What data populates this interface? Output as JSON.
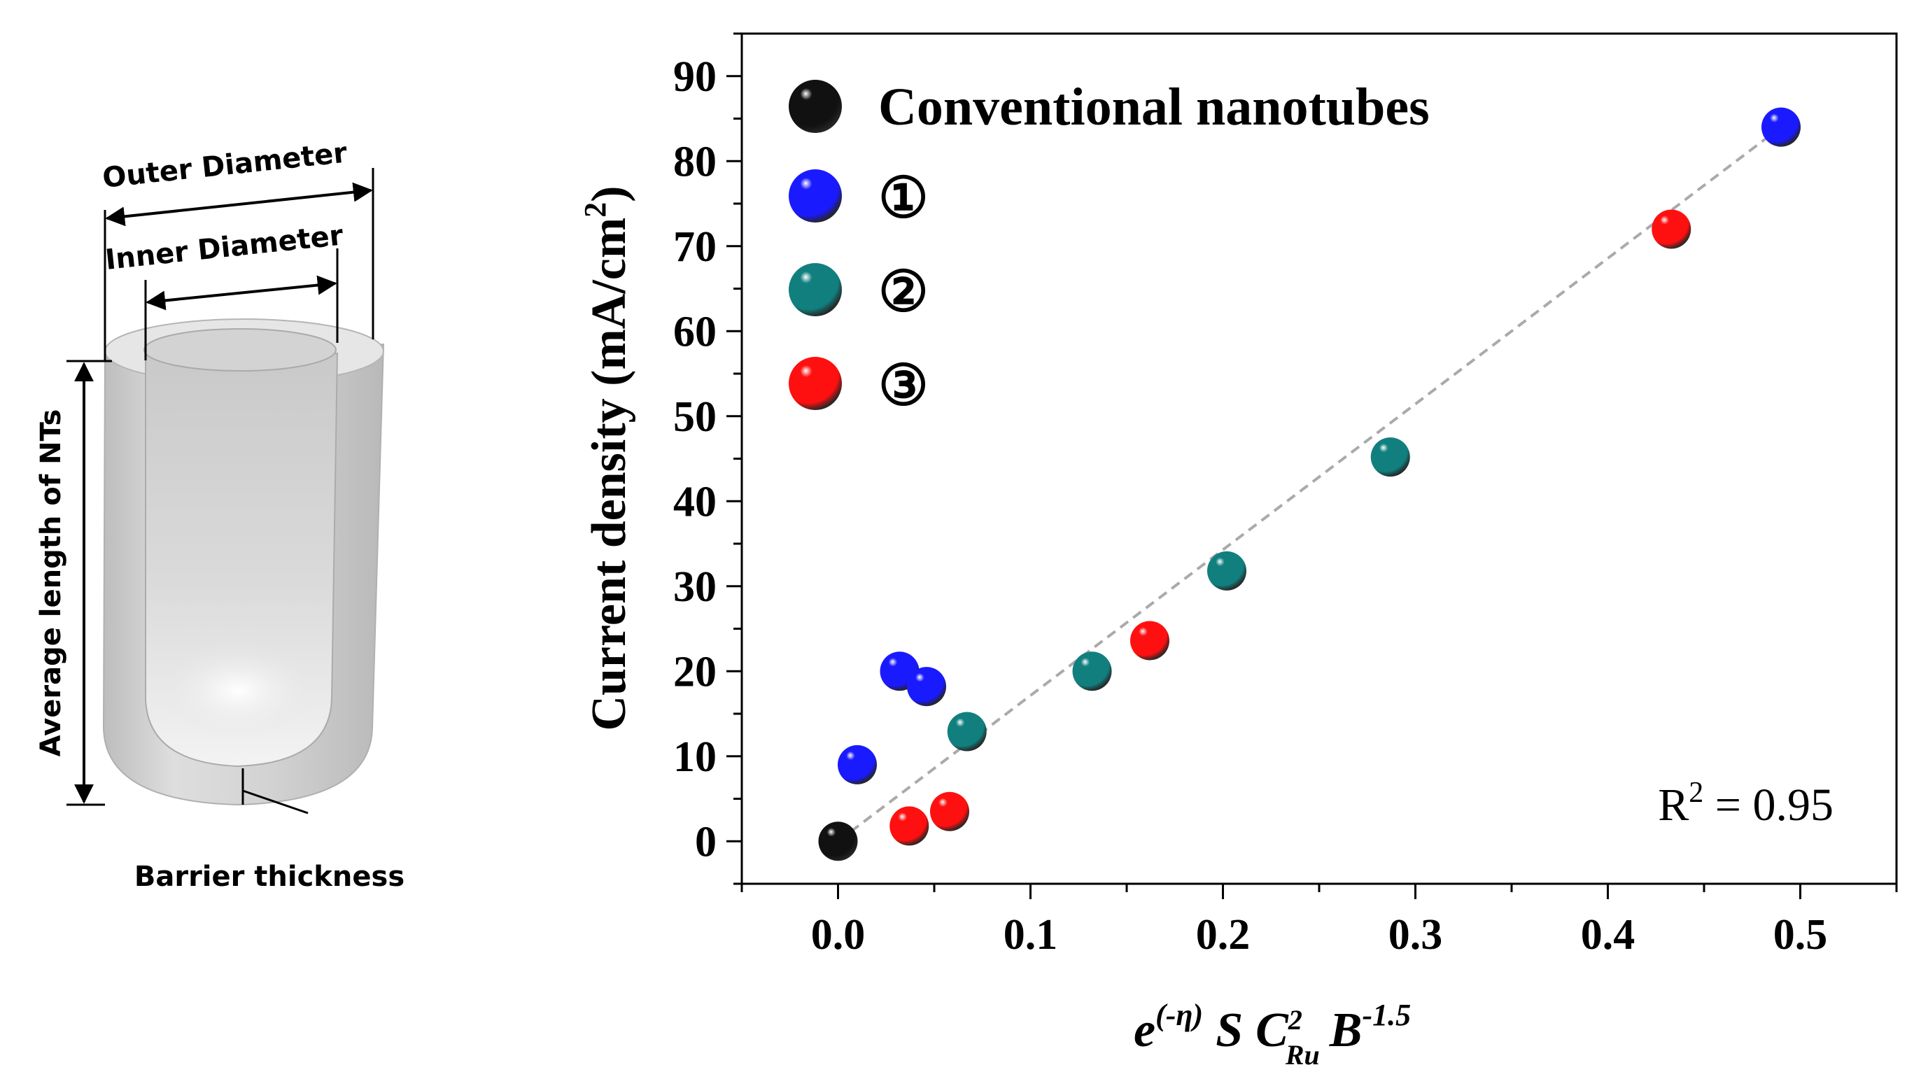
{
  "colors": {
    "black_marker": "#111111",
    "blue_marker": "#1a1aff",
    "teal_marker": "#127f7f",
    "red_marker": "#ff1010",
    "fit_line": "#aaaaaa"
  },
  "schematic": {
    "outer_diameter_label": "Outer Diameter",
    "inner_diameter_label": "Inner Diameter",
    "length_label": "Average length of NTs",
    "barrier_label": "Barrier thickness"
  },
  "chart_data": {
    "type": "scatter",
    "xlabel": {
      "base": "e",
      "exp": "(-η)",
      "s": "S",
      "c": "C",
      "c_sup": "2",
      "c_sub": "Ru",
      "b": "B",
      "b_exp": "-1.5"
    },
    "ylabel": {
      "text": "Current density (mA/cm",
      "sup": "2",
      "close": ")"
    },
    "xlim": [
      -0.05,
      0.55
    ],
    "ylim": [
      -5,
      95
    ],
    "x_ticks": [
      {
        "value": 0.0,
        "label": "0.0"
      },
      {
        "value": 0.1,
        "label": "0.1"
      },
      {
        "value": 0.2,
        "label": "0.2"
      },
      {
        "value": 0.3,
        "label": "0.3"
      },
      {
        "value": 0.4,
        "label": "0.4"
      },
      {
        "value": 0.5,
        "label": "0.5"
      }
    ],
    "y_ticks": [
      {
        "value": 0,
        "label": "0"
      },
      {
        "value": 10,
        "label": "10"
      },
      {
        "value": 20,
        "label": "20"
      },
      {
        "value": 30,
        "label": "30"
      },
      {
        "value": 40,
        "label": "40"
      },
      {
        "value": 50,
        "label": "50"
      },
      {
        "value": 60,
        "label": "60"
      },
      {
        "value": 70,
        "label": "70"
      },
      {
        "value": 80,
        "label": "80"
      },
      {
        "value": 90,
        "label": "90"
      }
    ],
    "series": [
      {
        "name": "Conventional nanotubes",
        "color": "#111111",
        "points": [
          [
            0.0,
            0.0
          ]
        ]
      },
      {
        "name": "①",
        "color": "#1a1aff",
        "points": [
          [
            0.01,
            9.0
          ],
          [
            0.032,
            20.0
          ],
          [
            0.046,
            18.2
          ],
          [
            0.49,
            84.0
          ]
        ]
      },
      {
        "name": "②",
        "color": "#127f7f",
        "points": [
          [
            0.067,
            12.9
          ],
          [
            0.132,
            20.0
          ],
          [
            0.202,
            31.8
          ],
          [
            0.287,
            45.2
          ]
        ]
      },
      {
        "name": "③",
        "color": "#ff1010",
        "points": [
          [
            0.037,
            1.8
          ],
          [
            0.058,
            3.5
          ],
          [
            0.162,
            23.6
          ],
          [
            0.433,
            72.0
          ]
        ]
      }
    ],
    "fit_line": {
      "x": [
        0.0,
        0.49
      ],
      "y": [
        0.0,
        84.0
      ]
    },
    "annotation": {
      "text": "R",
      "sup": "2",
      "rest": " = 0.95"
    }
  }
}
